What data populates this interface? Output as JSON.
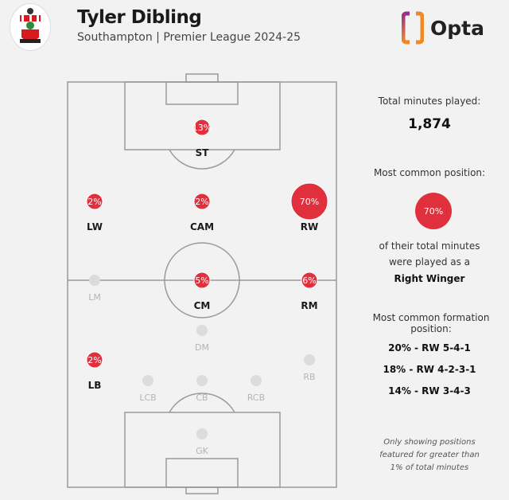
{
  "header": {
    "title": "Tyler Dibling",
    "subtitle": "Southampton | Premier League 2024-25",
    "logo_text": "Opta",
    "club_badge": "southampton-crest"
  },
  "colors": {
    "accent": "#e0303e",
    "inactive": "#dcdcdc",
    "pitch_line": "#9a9a9a",
    "background": "#f2f2f2"
  },
  "positions": [
    {
      "code": "ST",
      "pct": 13,
      "label": "13%",
      "active": true
    },
    {
      "code": "LW",
      "pct": 2,
      "label": "2%",
      "active": true
    },
    {
      "code": "CAM",
      "pct": 2,
      "label": "2%",
      "active": true
    },
    {
      "code": "RW",
      "pct": 70,
      "label": "70%",
      "active": true
    },
    {
      "code": "LM",
      "pct": null,
      "label": "",
      "active": false
    },
    {
      "code": "CM",
      "pct": 5,
      "label": "5%",
      "active": true
    },
    {
      "code": "RM",
      "pct": 6,
      "label": "6%",
      "active": true
    },
    {
      "code": "DM",
      "pct": null,
      "label": "",
      "active": false
    },
    {
      "code": "LB",
      "pct": 2,
      "label": "2%",
      "active": true
    },
    {
      "code": "RB",
      "pct": null,
      "label": "",
      "active": false
    },
    {
      "code": "LCB",
      "pct": null,
      "label": "",
      "active": false
    },
    {
      "code": "CB",
      "pct": null,
      "label": "",
      "active": false
    },
    {
      "code": "RCB",
      "pct": null,
      "label": "",
      "active": false
    },
    {
      "code": "GK",
      "pct": null,
      "label": "",
      "active": false
    }
  ],
  "sidebar": {
    "total_label": "Total minutes played:",
    "total_value": "1,874",
    "common_label": "Most common position:",
    "common_pct": "70%",
    "common_text1": "of their total minutes",
    "common_text2": "were played as a",
    "common_position": "Right Winger",
    "formation_label": "Most common formation position:",
    "formations": [
      "20% - RW 5-4-1",
      "18% - RW 4-2-3-1",
      "14% - RW 3-4-3"
    ],
    "note": [
      "Only showing positions",
      "featured for greater than",
      "1% of total minutes"
    ]
  }
}
